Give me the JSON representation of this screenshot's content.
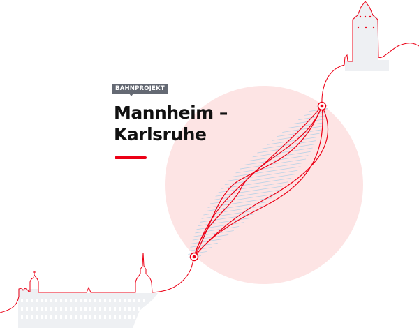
{
  "header": {
    "badge": "BAHNPROJEKT",
    "title_line1": "Mannheim –",
    "title_line2": "Karlsruhe"
  },
  "colors": {
    "accent": "#ec0016",
    "circle": "#fde4e4",
    "building": "#eef0f3",
    "badge": "#646973"
  }
}
